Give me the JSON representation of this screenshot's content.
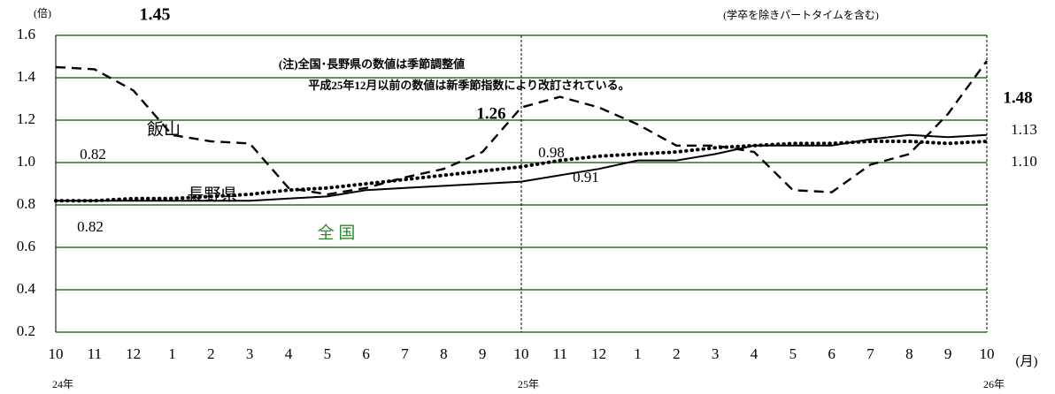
{
  "chart_data": {
    "type": "line",
    "y_unit": "(倍)",
    "x_unit": "(月)",
    "subtitle": "(学卒を除きパートタイムを含む)",
    "notes": [
      "(注)全国･長野県の数値は季節調整値",
      "平成25年12月以前の数値は新季節指数により改訂されている。"
    ],
    "categories": [
      "10",
      "11",
      "12",
      "1",
      "2",
      "3",
      "4",
      "5",
      "6",
      "7",
      "8",
      "9",
      "10",
      "11",
      "12",
      "1",
      "2",
      "3",
      "4",
      "5",
      "6",
      "7",
      "8",
      "9",
      "10"
    ],
    "year_labels": [
      "24年",
      null,
      null,
      null,
      null,
      null,
      null,
      null,
      null,
      null,
      null,
      null,
      "25年",
      null,
      null,
      null,
      null,
      null,
      null,
      null,
      null,
      null,
      null,
      null,
      "26年"
    ],
    "ylim": [
      0.2,
      1.6
    ],
    "yticks": [
      0.2,
      0.4,
      0.6,
      0.8,
      {
        "value": 1.0,
        "label": "1.0"
      },
      1.2,
      1.4,
      1.6
    ],
    "grid": true,
    "grid_color": "#2e6b2e",
    "series": [
      {
        "name": "飯山",
        "color": "#000000",
        "dash": "dashed",
        "values": [
          1.45,
          1.44,
          1.34,
          1.13,
          1.1,
          1.09,
          0.88,
          0.85,
          0.88,
          0.93,
          0.97,
          1.05,
          1.26,
          1.31,
          1.26,
          1.18,
          1.08,
          1.08,
          1.05,
          0.87,
          0.86,
          0.99,
          1.04,
          1.23,
          1.48
        ],
        "value_labels": [
          "1.45",
          null,
          null,
          null,
          null,
          null,
          null,
          null,
          null,
          null,
          null,
          null,
          "1.26",
          null,
          null,
          null,
          null,
          null,
          null,
          null,
          null,
          null,
          null,
          null,
          "1.48"
        ]
      },
      {
        "name": "長野県",
        "color": "#000000",
        "dash": "dotted",
        "values": [
          0.82,
          0.82,
          0.83,
          0.83,
          0.84,
          0.85,
          0.87,
          0.88,
          0.9,
          0.92,
          0.94,
          0.96,
          0.98,
          1.01,
          1.03,
          1.04,
          1.05,
          1.07,
          1.08,
          1.09,
          1.09,
          1.1,
          1.1,
          1.09,
          1.1
        ],
        "value_labels": [
          "0.82",
          null,
          null,
          null,
          null,
          null,
          null,
          null,
          null,
          null,
          null,
          null,
          "0.98",
          null,
          null,
          null,
          null,
          null,
          null,
          null,
          null,
          null,
          null,
          null,
          "1.10"
        ]
      },
      {
        "name": "全 国",
        "color": "#000000",
        "name_color": "#2e8b2e",
        "dash": "solid",
        "values": [
          0.82,
          0.82,
          0.82,
          0.82,
          0.82,
          0.82,
          0.83,
          0.84,
          0.87,
          0.88,
          0.89,
          0.9,
          0.91,
          0.94,
          0.97,
          1.01,
          1.01,
          1.04,
          1.08,
          1.08,
          1.08,
          1.11,
          1.13,
          1.12,
          1.13
        ],
        "value_labels": [
          "0.82",
          null,
          null,
          null,
          null,
          null,
          null,
          null,
          null,
          null,
          null,
          null,
          "0.91",
          null,
          null,
          null,
          null,
          null,
          null,
          null,
          null,
          null,
          null,
          null,
          "1.13"
        ]
      }
    ]
  }
}
